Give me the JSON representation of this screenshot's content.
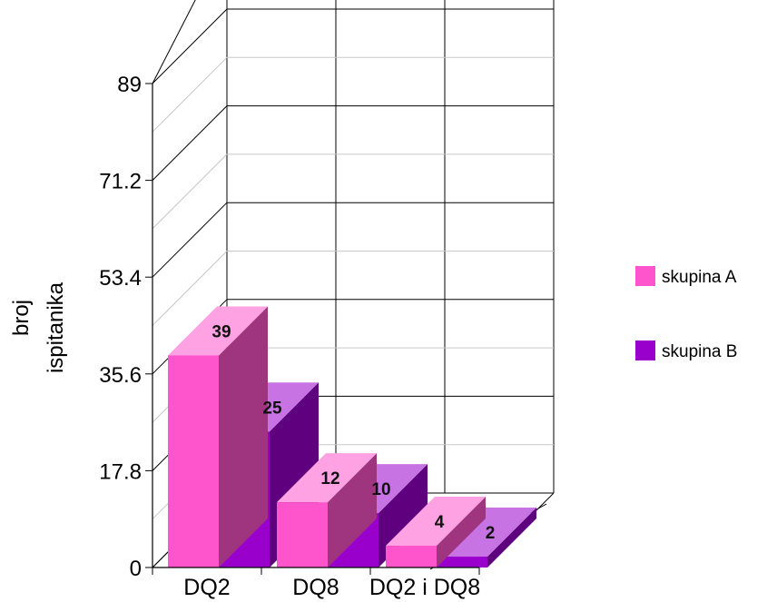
{
  "chart_data": {
    "type": "bar",
    "title": "",
    "ylabel_lines": [
      "broj",
      "ispitanika"
    ],
    "categories": [
      "DQ2",
      "DQ8",
      "DQ2 i DQ8"
    ],
    "series": [
      {
        "name": "skupina A",
        "values": [
          39,
          12,
          4
        ],
        "color": "#ff55cc"
      },
      {
        "name": "skupina B",
        "values": [
          25,
          10,
          2
        ],
        "color": "#9a00cc"
      }
    ],
    "yticks": [
      "0",
      "17.8",
      "35.6",
      "53.4",
      "71.2",
      "89"
    ],
    "ylim": [
      0,
      89
    ],
    "grid": true,
    "legend_position": "right"
  }
}
